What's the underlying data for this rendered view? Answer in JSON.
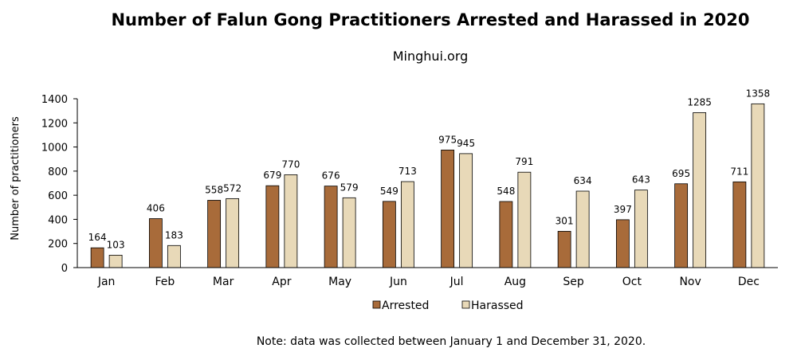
{
  "chart_data": {
    "type": "bar",
    "title": "Number of Falun Gong Practitioners Arrested and Harassed in 2020",
    "subtitle": "Minghui.org",
    "xlabel": "",
    "ylabel": "Number of practitioners",
    "ylim": [
      0,
      1400
    ],
    "yticks": [
      0,
      200,
      400,
      600,
      800,
      1000,
      1200,
      1400
    ],
    "categories": [
      "Jan",
      "Feb",
      "Mar",
      "Apr",
      "May",
      "Jun",
      "Jul",
      "Aug",
      "Sep",
      "Oct",
      "Nov",
      "Dec"
    ],
    "series": [
      {
        "name": "Arrested",
        "color": "#a86b3a",
        "values": [
          164,
          406,
          558,
          679,
          676,
          549,
          975,
          548,
          301,
          397,
          695,
          711
        ]
      },
      {
        "name": "Harassed",
        "color": "#e8d9b8",
        "values": [
          103,
          183,
          572,
          770,
          579,
          713,
          945,
          791,
          634,
          643,
          1285,
          1358
        ]
      }
    ],
    "grid": false,
    "legend_position": "bottom-center",
    "note": "Note: data was collected between January 1 and December 31, 2020."
  }
}
